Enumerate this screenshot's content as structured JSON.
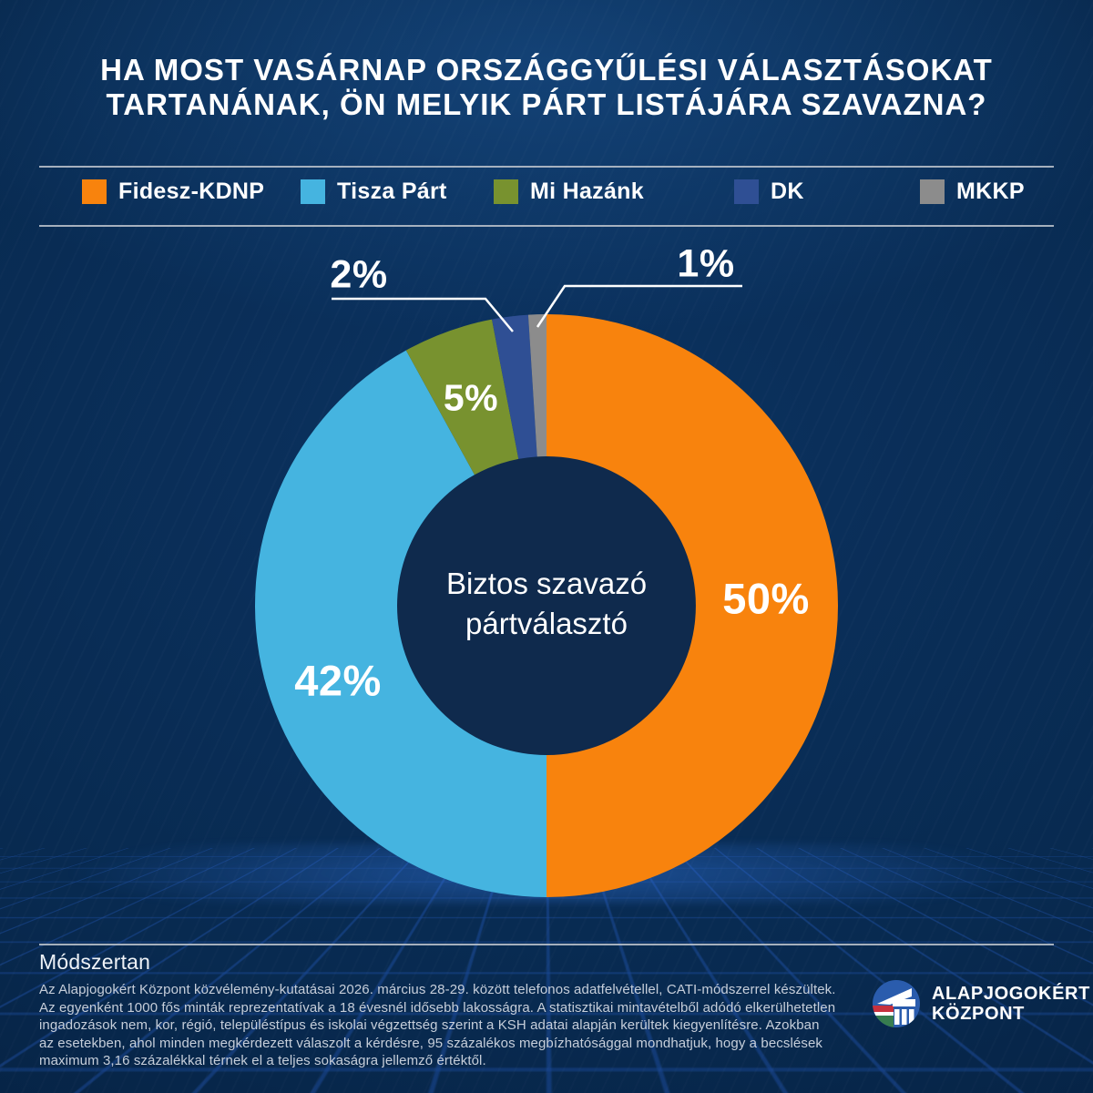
{
  "header": {
    "title_line1": "HA MOST VASÁRNAP ORSZÁGGYŰLÉSI VÁLASZTÁSOKAT",
    "title_line2": "TARTANÁNAK, ÖN MELYIK PÁRT LISTÁJÁRA SZAVAZNA?"
  },
  "chart_data": {
    "type": "pie",
    "subtype": "donut",
    "title": "HA MOST VASÁRNAP ORSZÁGGYŰLÉSI VÁLASZTÁSOKAT TARTANÁNAK, ÖN MELYIK PÁRT LISTÁJÁRA SZAVAZNA?",
    "center_label": "Biztos szavazó pártválasztó",
    "unit": "%",
    "start_angle_deg": 0,
    "direction": "clockwise",
    "legend_position": "top",
    "series": [
      {
        "name": "Fidesz-KDNP",
        "value": 50,
        "color": "#F8830D"
      },
      {
        "name": "Tisza Párt",
        "value": 42,
        "color": "#45B4E0"
      },
      {
        "name": "Mi Hazánk",
        "value": 5,
        "color": "#78922F"
      },
      {
        "name": "DK",
        "value": 2,
        "color": "#2F4F94"
      },
      {
        "name": "MKKP",
        "value": 1,
        "color": "#8C8C8C"
      }
    ]
  },
  "methodology": {
    "heading": "Módszertan",
    "body": "Az Alapjogokért Központ közvélemény-kutatásai 2026. március 28-29. között telefonos adatfelvétellel, CATI-módszerrel készültek.\nAz egyenként 1000 fős minták reprezentatívak a 18 évesnél idősebb lakosságra. A statisztikai mintavételből adódó elkerülhetetlen\ningadozások nem, kor, régió, településtípus és iskolai végzettség szerint a KSH adatai alapján kerültek kiegyenlítésre. Azokban\naz esetekben, ahol minden megkérdezett válaszolt a kérdésre, 95 százalékos megbízhatósággal mondhatjuk, hogy a becslések\nmaximum 3,16 százalékkal térnek el a teljes sokaságra jellemző értéktől."
  },
  "logo": {
    "name_line1": "ALAPJOGOKÉRT",
    "name_line2": "KÖZPONT"
  },
  "colors": {
    "background_navy": "#082A50",
    "donut_hole": "#0F2A4D",
    "separator_gray": "#B7BFC9",
    "text_muted": "#C6CEDA",
    "grid_blue": "#2D6EF0"
  }
}
